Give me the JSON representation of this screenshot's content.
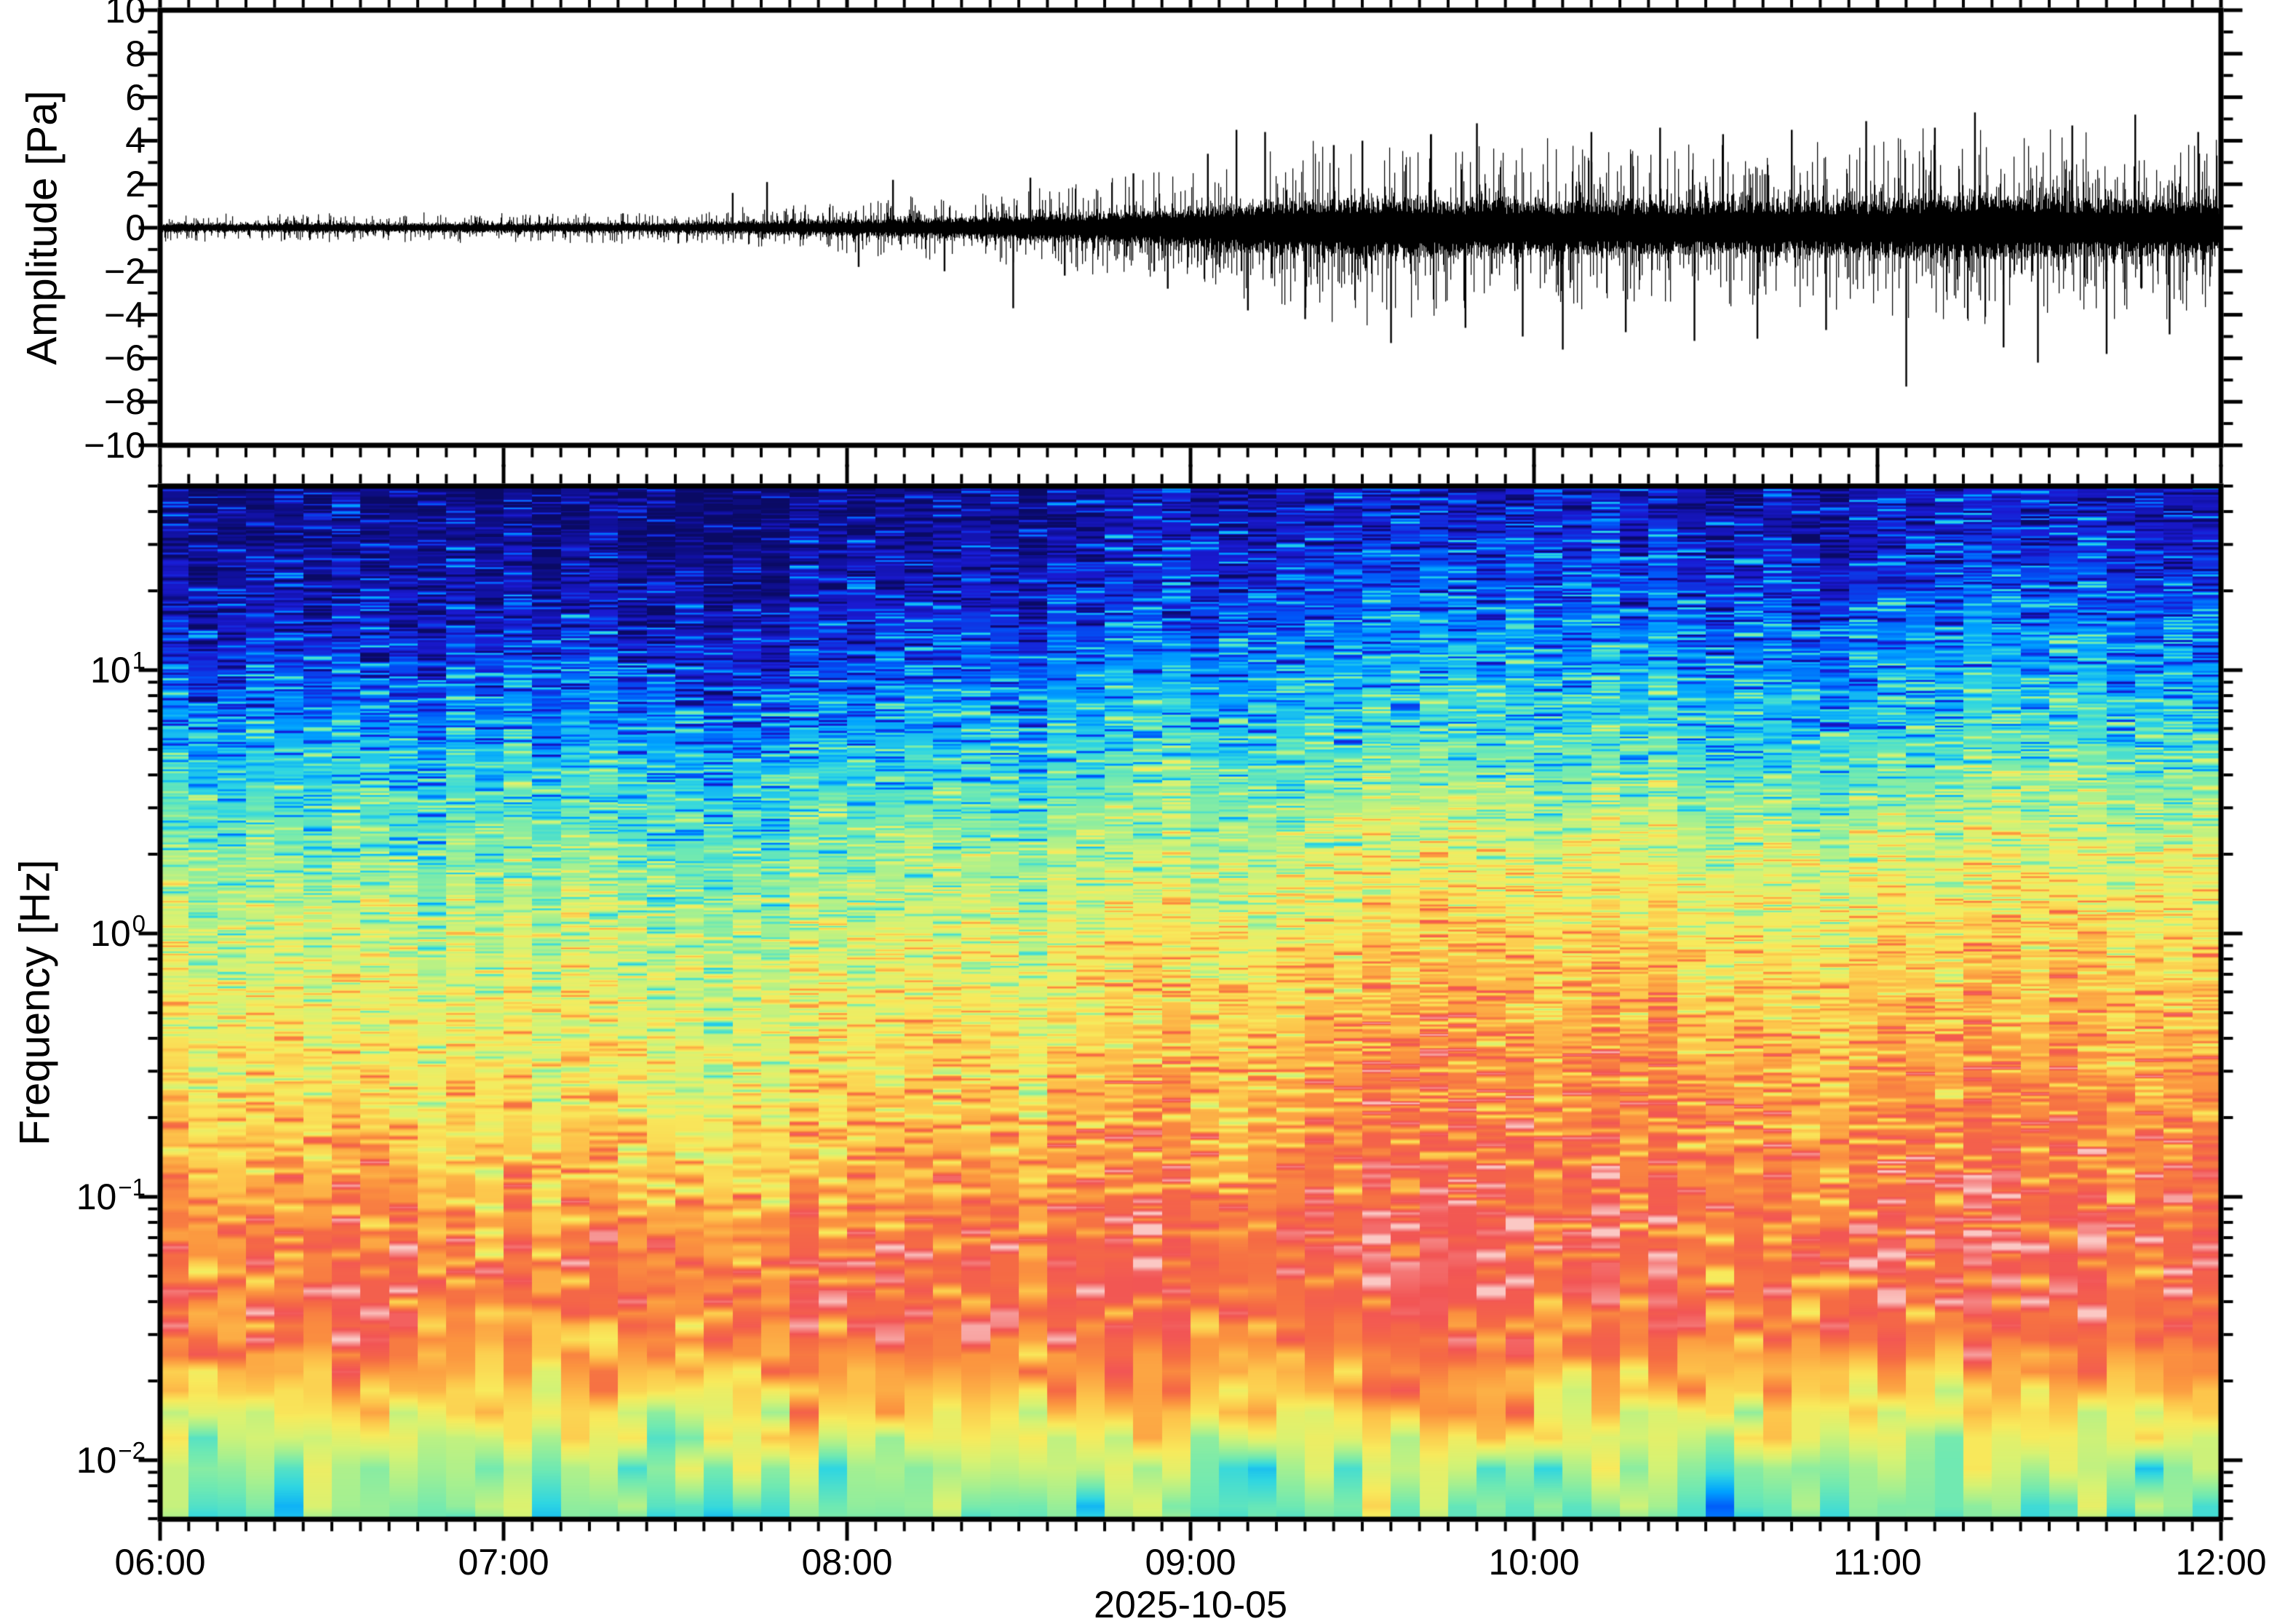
{
  "figure": {
    "background": "#ffffff",
    "frame_color": "#000000",
    "trace_color": "#000000",
    "date_label": "2025-10-05"
  },
  "waveform_panel": {
    "ylabel": "Amplitude [Pa]",
    "ylim": [
      -10,
      10
    ],
    "ytick_values": [
      10,
      8,
      6,
      4,
      2,
      0,
      -2,
      -4,
      -6,
      -8,
      -10
    ],
    "ytick_labels": [
      "10",
      "8",
      "6",
      "4",
      "2",
      "0",
      "−2",
      "−4",
      "−6",
      "−8",
      "−10"
    ],
    "minor_tick_step_pa": 1
  },
  "spectrogram_panel": {
    "ylabel": "Frequency [Hz]",
    "freq_min_hz": 0.006,
    "freq_max_hz": 50,
    "ytick_labels": [
      {
        "base": "10",
        "exp": "1"
      },
      {
        "base": "10",
        "exp": "0"
      },
      {
        "base": "10",
        "exp": "−1"
      },
      {
        "base": "10",
        "exp": "−2"
      }
    ],
    "ytick_values_hz": [
      10,
      1,
      0.1,
      0.01
    ]
  },
  "time_axis": {
    "start": "06:00",
    "end": "12:00",
    "tick_labels": [
      "06:00",
      "07:00",
      "08:00",
      "09:00",
      "10:00",
      "11:00",
      "12:00"
    ],
    "minor_tick_interval_min": 5,
    "major_tick_interval_min": 60
  },
  "chart_data": [
    {
      "type": "line",
      "name": "infrasound-waveform",
      "ylabel": "Amplitude [Pa]",
      "ylim": [
        -10,
        10
      ],
      "x_unit": "minutes after 06:00",
      "envelope_interval_min": 5,
      "rms_envelope_pa": [
        0.17,
        0.18,
        0.17,
        0.16,
        0.18,
        0.19,
        0.18,
        0.17,
        0.18,
        0.19,
        0.2,
        0.19,
        0.18,
        0.19,
        0.2,
        0.21,
        0.2,
        0.19,
        0.22,
        0.24,
        0.26,
        0.28,
        0.3,
        0.33,
        0.36,
        0.38,
        0.4,
        0.42,
        0.45,
        0.48,
        0.52,
        0.55,
        0.58,
        0.62,
        0.68,
        0.75,
        0.85,
        0.95,
        1.05,
        1.1,
        1.15,
        1.18,
        1.2,
        1.18,
        1.15,
        1.12,
        1.1,
        1.08,
        1.1,
        1.08,
        1.06,
        1.05,
        1.08,
        1.1,
        1.08,
        1.05,
        1.06,
        1.08,
        1.1,
        1.12,
        1.15,
        1.2,
        1.28,
        1.3,
        1.25,
        1.2,
        1.22,
        1.18,
        1.15,
        1.16,
        1.14,
        1.12
      ],
      "spikes_pa": [
        [
          100,
          1.6
        ],
        [
          106,
          2.1
        ],
        [
          122,
          -1.8
        ],
        [
          128,
          2.2
        ],
        [
          137,
          -2.0
        ],
        [
          149,
          -3.7
        ],
        [
          152,
          2.3
        ],
        [
          158,
          -2.2
        ],
        [
          170,
          2.5
        ],
        [
          176,
          -2.8
        ],
        [
          183,
          3.4
        ],
        [
          188,
          4.5
        ],
        [
          190,
          -3.8
        ],
        [
          193,
          4.4
        ],
        [
          200,
          -4.2
        ],
        [
          205,
          3.8
        ],
        [
          210,
          4.0
        ],
        [
          215,
          -5.3
        ],
        [
          222,
          4.3
        ],
        [
          228,
          -4.6
        ],
        [
          230,
          4.8
        ],
        [
          238,
          -5.0
        ],
        [
          245,
          -5.6
        ],
        [
          250,
          4.4
        ],
        [
          256,
          -4.8
        ],
        [
          262,
          4.6
        ],
        [
          268,
          -5.2
        ],
        [
          273,
          4.3
        ],
        [
          279,
          -5.1
        ],
        [
          285,
          4.5
        ],
        [
          291,
          -4.7
        ],
        [
          298,
          4.9
        ],
        [
          305,
          -7.3
        ],
        [
          310,
          4.6
        ],
        [
          317,
          5.3
        ],
        [
          322,
          -5.5
        ],
        [
          328,
          -6.2
        ],
        [
          334,
          4.7
        ],
        [
          340,
          -5.8
        ],
        [
          345,
          5.2
        ],
        [
          351,
          -4.9
        ],
        [
          356,
          4.4
        ]
      ]
    },
    {
      "type": "heatmap",
      "name": "infrasound-spectrogram",
      "ylabel": "Frequency [Hz]",
      "yscale": "log",
      "freq_range_hz": [
        0.006,
        50
      ],
      "time_bin_min": 15,
      "time_bin_count": 24,
      "power_units": "relative level 0-100",
      "freq_bins_hz": [
        50,
        31,
        19.5,
        12.2,
        7.6,
        4.8,
        3.0,
        1.87,
        1.17,
        0.73,
        0.46,
        0.285,
        0.178,
        0.111,
        0.07,
        0.0435,
        0.0272,
        0.017,
        0.0106,
        0.0066
      ],
      "power_levels": [
        [
          3,
          1,
          2,
          4,
          3,
          4,
          2,
          2,
          3,
          5,
          7,
          9,
          11,
          12,
          12,
          11,
          13,
          12,
          10,
          9,
          12,
          13,
          12,
          11
        ],
        [
          6,
          4,
          5,
          7,
          5,
          7,
          4,
          5,
          6,
          8,
          9,
          11,
          14,
          16,
          16,
          15,
          17,
          16,
          13,
          12,
          15,
          17,
          16,
          14
        ],
        [
          10,
          8,
          9,
          11,
          9,
          11,
          8,
          9,
          10,
          12,
          14,
          16,
          19,
          21,
          22,
          21,
          22,
          21,
          19,
          17,
          21,
          23,
          22,
          20
        ],
        [
          16,
          14,
          15,
          17,
          15,
          17,
          14,
          15,
          16,
          18,
          20,
          22,
          25,
          27,
          28,
          27,
          28,
          27,
          26,
          24,
          27,
          29,
          28,
          26
        ],
        [
          24,
          22,
          23,
          25,
          23,
          25,
          22,
          23,
          24,
          26,
          27,
          29,
          31,
          33,
          34,
          33,
          34,
          33,
          32,
          30,
          33,
          35,
          34,
          32
        ],
        [
          32,
          30,
          31,
          33,
          31,
          33,
          30,
          31,
          32,
          34,
          35,
          37,
          39,
          41,
          42,
          41,
          42,
          41,
          40,
          38,
          41,
          43,
          42,
          40
        ],
        [
          40,
          38,
          39,
          41,
          39,
          41,
          38,
          39,
          40,
          42,
          43,
          45,
          48,
          50,
          52,
          51,
          52,
          51,
          50,
          48,
          51,
          53,
          52,
          50
        ],
        [
          46,
          44,
          45,
          47,
          45,
          47,
          44,
          45,
          46,
          48,
          50,
          52,
          55,
          58,
          60,
          59,
          60,
          59,
          58,
          56,
          59,
          61,
          60,
          58
        ],
        [
          52,
          50,
          51,
          53,
          51,
          53,
          50,
          51,
          52,
          54,
          56,
          58,
          61,
          64,
          66,
          65,
          66,
          65,
          64,
          62,
          65,
          67,
          66,
          64
        ],
        [
          56,
          54,
          55,
          57,
          55,
          57,
          54,
          55,
          56,
          58,
          60,
          63,
          66,
          69,
          71,
          70,
          71,
          70,
          69,
          67,
          70,
          72,
          71,
          69
        ],
        [
          60,
          58,
          59,
          61,
          59,
          61,
          58,
          59,
          60,
          62,
          64,
          67,
          70,
          73,
          75,
          74,
          75,
          74,
          73,
          71,
          74,
          76,
          75,
          73
        ],
        [
          64,
          61,
          63,
          66,
          62,
          65,
          61,
          63,
          64,
          66,
          68,
          71,
          74,
          77,
          79,
          78,
          79,
          78,
          77,
          75,
          78,
          80,
          79,
          77
        ],
        [
          68,
          65,
          70,
          67,
          64,
          70,
          66,
          68,
          67,
          70,
          72,
          74,
          77,
          80,
          82,
          81,
          82,
          81,
          80,
          78,
          81,
          83,
          82,
          80
        ],
        [
          73,
          70,
          76,
          73,
          69,
          77,
          72,
          75,
          72,
          76,
          77,
          79,
          81,
          83,
          85,
          84,
          85,
          83,
          84,
          82,
          85,
          87,
          85,
          83
        ],
        [
          79,
          76,
          82,
          79,
          75,
          83,
          79,
          81,
          79,
          82,
          83,
          84,
          86,
          87,
          88,
          87,
          88,
          86,
          87,
          85,
          87,
          89,
          88,
          86
        ],
        [
          81,
          78,
          84,
          81,
          77,
          85,
          81,
          83,
          81,
          83,
          84,
          84,
          85,
          86,
          86,
          85,
          86,
          85,
          84,
          84,
          85,
          87,
          86,
          85
        ],
        [
          75,
          72,
          78,
          75,
          72,
          79,
          75,
          77,
          75,
          77,
          78,
          78,
          79,
          80,
          80,
          79,
          80,
          79,
          79,
          78,
          79,
          81,
          80,
          79
        ],
        [
          63,
          60,
          66,
          63,
          60,
          67,
          63,
          65,
          63,
          65,
          66,
          66,
          67,
          68,
          68,
          67,
          68,
          67,
          67,
          66,
          67,
          69,
          68,
          67
        ],
        [
          49,
          46,
          52,
          49,
          46,
          53,
          49,
          51,
          49,
          51,
          52,
          52,
          52,
          53,
          53,
          52,
          53,
          52,
          52,
          51,
          52,
          54,
          53,
          52
        ],
        [
          39,
          36,
          42,
          39,
          36,
          43,
          39,
          41,
          39,
          41,
          42,
          42,
          42,
          43,
          43,
          42,
          43,
          42,
          42,
          41,
          42,
          44,
          43,
          42
        ]
      ],
      "colormap_stops": [
        {
          "pos": 0.0,
          "color": "#0a0a64"
        },
        {
          "pos": 0.07,
          "color": "#10109b"
        },
        {
          "pos": 0.14,
          "color": "#1a1ad2"
        },
        {
          "pos": 0.21,
          "color": "#0055f8"
        },
        {
          "pos": 0.28,
          "color": "#00a2ff"
        },
        {
          "pos": 0.35,
          "color": "#2fd6e2"
        },
        {
          "pos": 0.42,
          "color": "#6fe9b2"
        },
        {
          "pos": 0.49,
          "color": "#a8f08f"
        },
        {
          "pos": 0.56,
          "color": "#d8f272"
        },
        {
          "pos": 0.63,
          "color": "#f8ea5c"
        },
        {
          "pos": 0.7,
          "color": "#fdc54b"
        },
        {
          "pos": 0.77,
          "color": "#fb943f"
        },
        {
          "pos": 0.83,
          "color": "#f56b44"
        },
        {
          "pos": 0.89,
          "color": "#f25555"
        },
        {
          "pos": 0.95,
          "color": "#f69392"
        },
        {
          "pos": 1.0,
          "color": "#fbc8c4"
        }
      ]
    }
  ]
}
